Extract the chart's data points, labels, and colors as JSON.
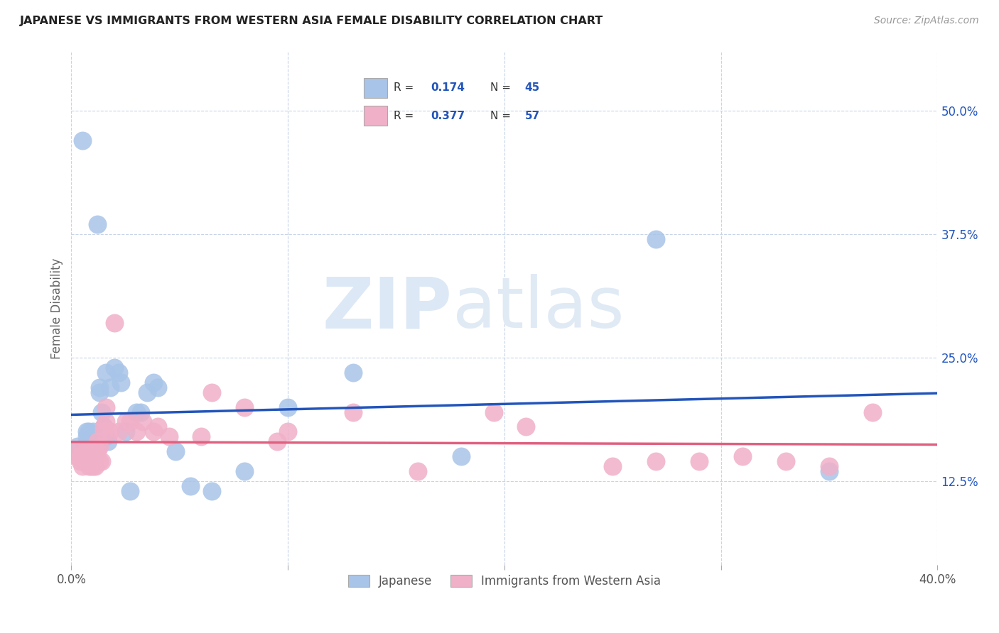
{
  "title": "JAPANESE VS IMMIGRANTS FROM WESTERN ASIA FEMALE DISABILITY CORRELATION CHART",
  "source": "Source: ZipAtlas.com",
  "ylabel": "Female Disability",
  "ytick_labels": [
    "12.5%",
    "25.0%",
    "37.5%",
    "50.0%"
  ],
  "ytick_values": [
    0.125,
    0.25,
    0.375,
    0.5
  ],
  "xlim": [
    0.0,
    0.4
  ],
  "ylim": [
    0.04,
    0.56
  ],
  "legend_labels": [
    "Japanese",
    "Immigrants from Western Asia"
  ],
  "blue_R": "0.174",
  "blue_N": "45",
  "pink_R": "0.377",
  "pink_N": "57",
  "blue_color": "#a8c4e8",
  "pink_color": "#f0b0c8",
  "blue_line_color": "#2255bb",
  "pink_line_color": "#e06080",
  "watermark_top": "ZIP",
  "watermark_bot": "atlas",
  "watermark_color": "#dce8f5",
  "background_color": "#ffffff",
  "grid_color": "#c8d4e8",
  "japanese_x": [
    0.003,
    0.005,
    0.006,
    0.007,
    0.007,
    0.008,
    0.008,
    0.009,
    0.009,
    0.01,
    0.01,
    0.01,
    0.011,
    0.011,
    0.012,
    0.012,
    0.012,
    0.013,
    0.013,
    0.014,
    0.015,
    0.015,
    0.016,
    0.016,
    0.017,
    0.018,
    0.02,
    0.022,
    0.023,
    0.025,
    0.027,
    0.03,
    0.032,
    0.035,
    0.038,
    0.04,
    0.048,
    0.055,
    0.065,
    0.08,
    0.1,
    0.13,
    0.18,
    0.27,
    0.35
  ],
  "japanese_y": [
    0.16,
    0.47,
    0.16,
    0.17,
    0.175,
    0.175,
    0.165,
    0.165,
    0.155,
    0.175,
    0.16,
    0.15,
    0.165,
    0.16,
    0.17,
    0.165,
    0.385,
    0.22,
    0.215,
    0.195,
    0.18,
    0.17,
    0.235,
    0.17,
    0.165,
    0.22,
    0.24,
    0.235,
    0.225,
    0.175,
    0.115,
    0.195,
    0.195,
    0.215,
    0.225,
    0.22,
    0.155,
    0.12,
    0.115,
    0.135,
    0.2,
    0.235,
    0.15,
    0.37,
    0.135
  ],
  "western_asia_x": [
    0.002,
    0.003,
    0.004,
    0.005,
    0.005,
    0.006,
    0.006,
    0.007,
    0.007,
    0.007,
    0.008,
    0.008,
    0.008,
    0.009,
    0.009,
    0.009,
    0.01,
    0.01,
    0.01,
    0.011,
    0.011,
    0.011,
    0.012,
    0.012,
    0.013,
    0.013,
    0.014,
    0.015,
    0.015,
    0.016,
    0.016,
    0.018,
    0.02,
    0.022,
    0.025,
    0.027,
    0.03,
    0.033,
    0.038,
    0.04,
    0.045,
    0.06,
    0.065,
    0.08,
    0.095,
    0.1,
    0.13,
    0.16,
    0.195,
    0.21,
    0.25,
    0.27,
    0.29,
    0.31,
    0.33,
    0.35,
    0.37
  ],
  "western_asia_y": [
    0.155,
    0.15,
    0.145,
    0.14,
    0.155,
    0.15,
    0.145,
    0.155,
    0.15,
    0.145,
    0.155,
    0.15,
    0.14,
    0.155,
    0.15,
    0.14,
    0.155,
    0.15,
    0.14,
    0.155,
    0.15,
    0.14,
    0.165,
    0.155,
    0.16,
    0.145,
    0.145,
    0.18,
    0.175,
    0.2,
    0.185,
    0.175,
    0.285,
    0.175,
    0.185,
    0.185,
    0.175,
    0.185,
    0.175,
    0.18,
    0.17,
    0.17,
    0.215,
    0.2,
    0.165,
    0.175,
    0.195,
    0.135,
    0.195,
    0.18,
    0.14,
    0.145,
    0.145,
    0.15,
    0.145,
    0.14,
    0.195
  ]
}
